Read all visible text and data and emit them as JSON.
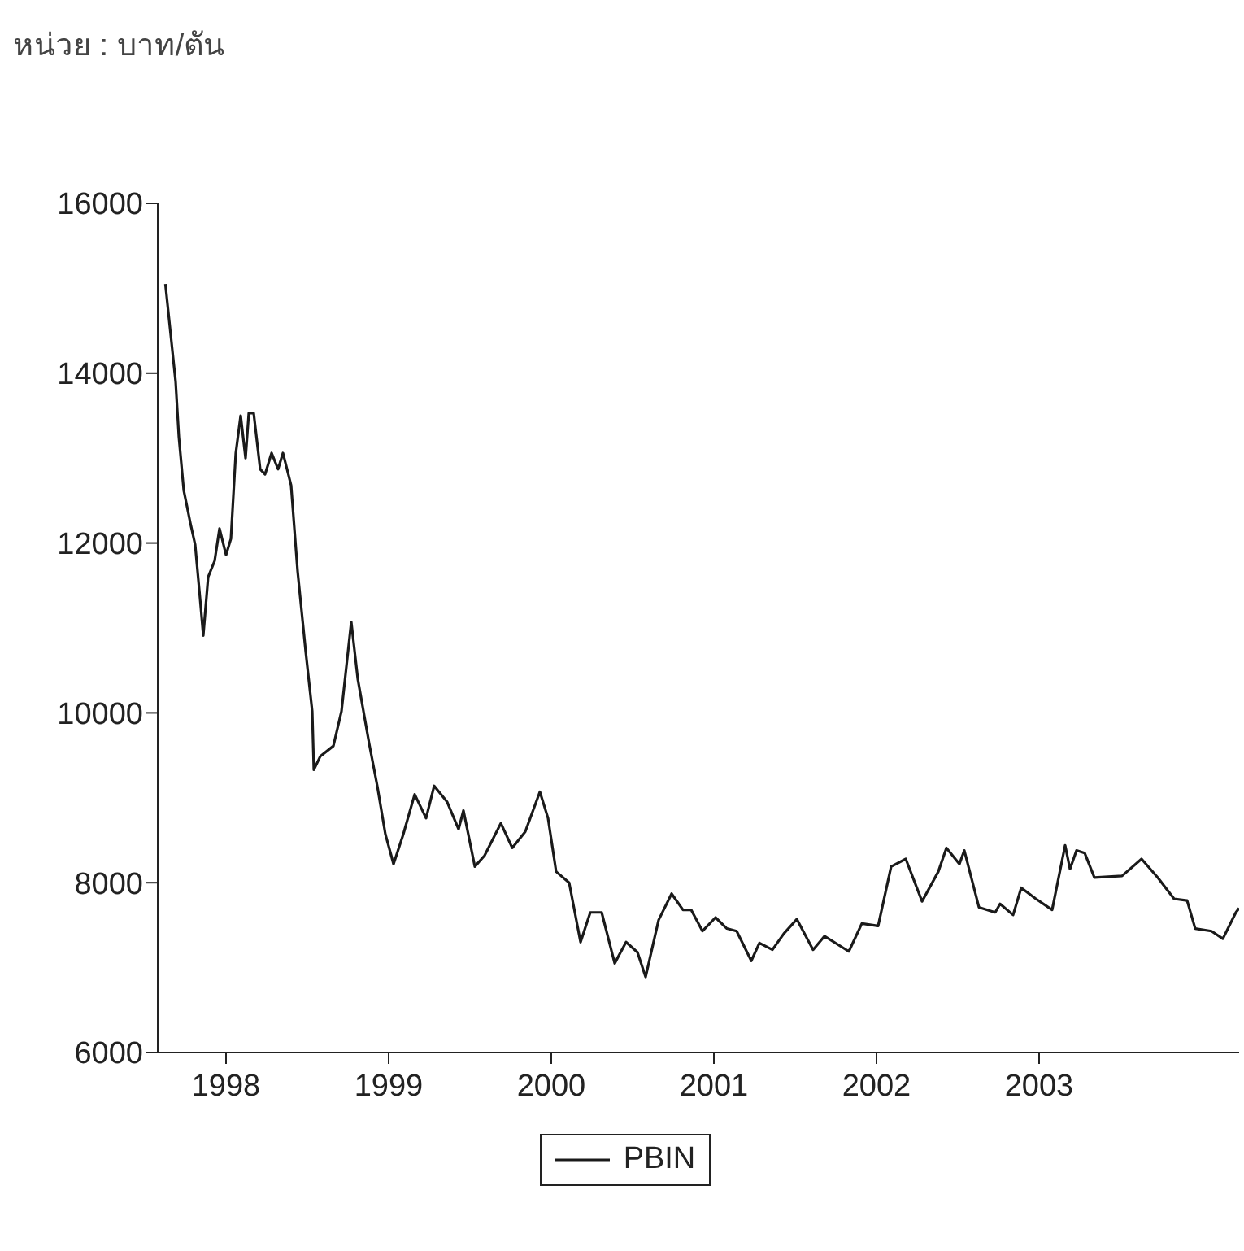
{
  "chart_data": {
    "type": "line",
    "title": "หน่วย : บาท/ตัน",
    "x": [
      1997.627,
      1997.66,
      1997.69,
      1997.71,
      1997.74,
      1997.78,
      1997.81,
      1997.84,
      1997.86,
      1997.89,
      1997.93,
      1997.96,
      1998.0,
      1998.03,
      1998.06,
      1998.09,
      1998.12,
      1998.14,
      1998.17,
      1998.21,
      1998.24,
      1998.28,
      1998.32,
      1998.35,
      1998.4,
      1998.44,
      1998.49,
      1998.53,
      1998.54,
      1998.58,
      1998.66,
      1998.71,
      1998.77,
      1998.81,
      1998.88,
      1998.93,
      1998.98,
      1999.03,
      1999.09,
      1999.16,
      1999.23,
      1999.28,
      1999.36,
      1999.43,
      1999.46,
      1999.53,
      1999.59,
      1999.69,
      1999.76,
      1999.84,
      1999.93,
      1999.98,
      2000.03,
      2000.11,
      2000.18,
      2000.24,
      2000.31,
      2000.39,
      2000.46,
      2000.53,
      2000.58,
      2000.66,
      2000.74,
      2000.81,
      2000.86,
      2000.93,
      2001.01,
      2001.08,
      2001.14,
      2001.23,
      2001.28,
      2001.36,
      2001.43,
      2001.51,
      2001.61,
      2001.68,
      2001.83,
      2001.91,
      2002.01,
      2002.09,
      2002.18,
      2002.28,
      2002.38,
      2002.43,
      2002.51,
      2002.54,
      2002.63,
      2002.73,
      2002.76,
      2002.84,
      2002.89,
      2002.98,
      2003.08,
      2003.16,
      2003.19,
      2003.23,
      2003.28,
      2003.34,
      2003.51,
      2003.63,
      2003.73,
      2003.83,
      2003.91,
      2003.96,
      2004.06,
      2004.13,
      2004.21,
      2004.23
    ],
    "series": [
      {
        "name": "PBIN",
        "color": "#1a1a1a",
        "values": [
          15050,
          14450,
          13900,
          13250,
          12620,
          12240,
          11980,
          11350,
          10910,
          11600,
          11790,
          12170,
          11860,
          12050,
          13060,
          13500,
          13000,
          13530,
          13530,
          12870,
          12810,
          13060,
          12870,
          13060,
          12680,
          11670,
          10720,
          10020,
          9330,
          9490,
          9610,
          10020,
          11070,
          10400,
          9640,
          9140,
          8570,
          8220,
          8570,
          9040,
          8760,
          9140,
          8950,
          8630,
          8850,
          8190,
          8320,
          8700,
          8410,
          8600,
          9070,
          8760,
          8130,
          8000,
          7300,
          7650,
          7650,
          7050,
          7300,
          7180,
          6890,
          7560,
          7870,
          7680,
          7680,
          7430,
          7590,
          7460,
          7430,
          7080,
          7290,
          7210,
          7400,
          7570,
          7210,
          7370,
          7190,
          7520,
          7490,
          8190,
          8280,
          7780,
          8130,
          8410,
          8220,
          8380,
          7710,
          7650,
          7750,
          7620,
          7940,
          7810,
          7680,
          8440,
          8160,
          8380,
          8350,
          8060,
          8080,
          8280,
          8060,
          7810,
          7790,
          7460,
          7430,
          7340,
          7650,
          7700
        ]
      }
    ],
    "xlim": [
      1997.58,
      2004.23
    ],
    "xticks": [
      {
        "value": 1998,
        "label": "1998"
      },
      {
        "value": 1999,
        "label": "1999"
      },
      {
        "value": 2000,
        "label": "2000"
      },
      {
        "value": 2001,
        "label": "2001"
      },
      {
        "value": 2002,
        "label": "2002"
      },
      {
        "value": 2003,
        "label": "2003"
      }
    ],
    "ylim": [
      6000,
      16000
    ],
    "yticks": [
      6000,
      8000,
      10000,
      12000,
      14000,
      16000
    ],
    "grid": false,
    "legend": "bottom",
    "marker": "none",
    "line_style": "solid"
  }
}
